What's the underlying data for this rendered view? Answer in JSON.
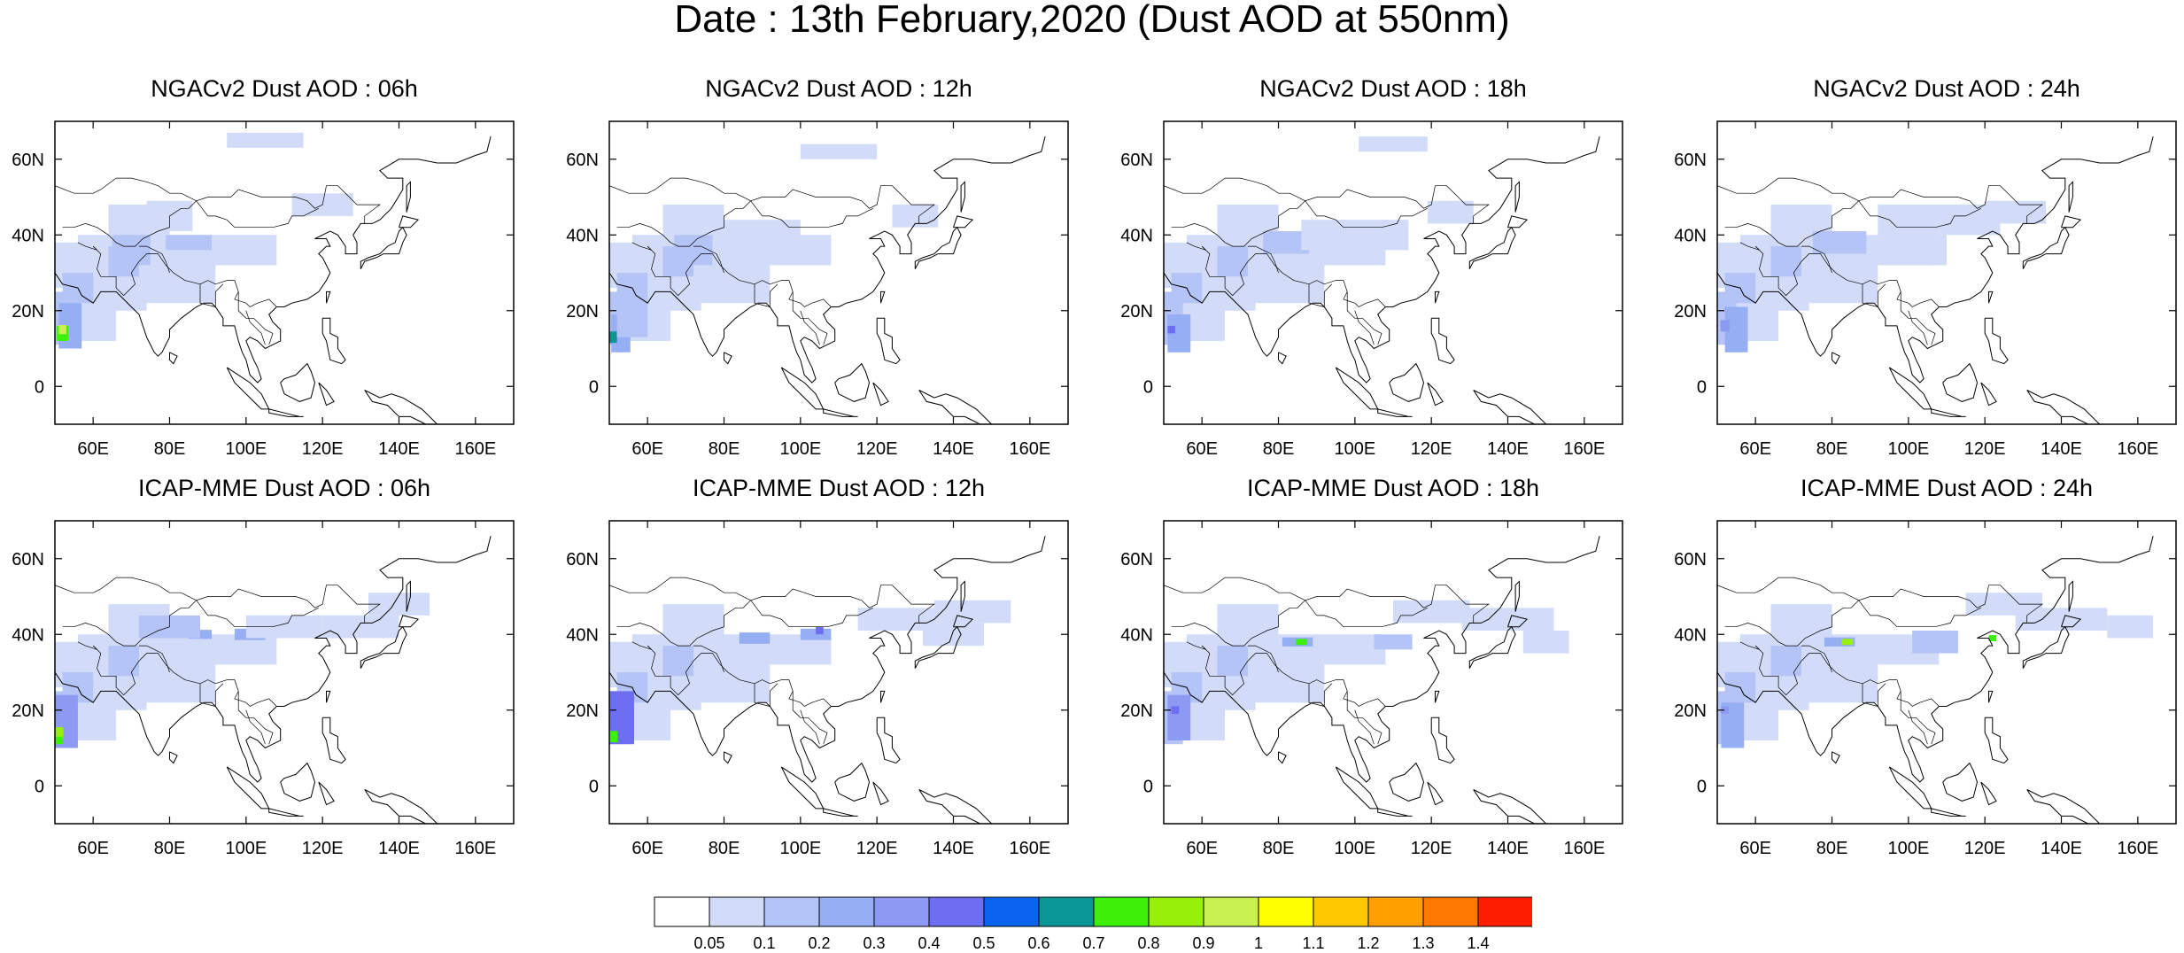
{
  "title": "Date : 13th February,2020 (Dust AOD at 550nm)",
  "panels": [
    {
      "title": "NGACv2 Dust AOD : 06h",
      "model": "NGACv2",
      "hour": "06h"
    },
    {
      "title": "NGACv2 Dust AOD : 12h",
      "model": "NGACv2",
      "hour": "12h"
    },
    {
      "title": "NGACv2 Dust AOD : 18h",
      "model": "NGACv2",
      "hour": "18h"
    },
    {
      "title": "NGACv2 Dust AOD : 24h",
      "model": "NGACv2",
      "hour": "24h"
    },
    {
      "title": "ICAP-MME Dust AOD : 06h",
      "model": "ICAP-MME",
      "hour": "06h"
    },
    {
      "title": "ICAP-MME Dust AOD : 12h",
      "model": "ICAP-MME",
      "hour": "12h"
    },
    {
      "title": "ICAP-MME Dust AOD : 18h",
      "model": "ICAP-MME",
      "hour": "18h"
    },
    {
      "title": "ICAP-MME Dust AOD : 24h",
      "model": "ICAP-MME",
      "hour": "24h"
    }
  ],
  "map": {
    "lon_range": [
      50,
      170
    ],
    "lat_range": [
      -10,
      70
    ],
    "lon_ticks": [
      60,
      80,
      100,
      120,
      140,
      160
    ],
    "lon_tick_labels": [
      "60E",
      "80E",
      "100E",
      "120E",
      "140E",
      "160E"
    ],
    "lat_ticks": [
      0,
      20,
      40,
      60
    ],
    "lat_tick_labels": [
      "0",
      "20N",
      "40N",
      "60N"
    ]
  },
  "colorbar": {
    "colors": [
      "#ffffff",
      "#d2dcf8",
      "#b4c4f6",
      "#96aef4",
      "#8c9af4",
      "#6e6ef2",
      "#0a64f0",
      "#0a9696",
      "#3cf00a",
      "#96f00a",
      "#c8f050",
      "#ffff00",
      "#ffc800",
      "#ffa000",
      "#ff7800",
      "#ff1e00"
    ],
    "labels": [
      "0.05",
      "0.1",
      "0.2",
      "0.3",
      "0.4",
      "0.5",
      "0.6",
      "0.7",
      "0.8",
      "0.9",
      "1",
      "1.1",
      "1.2",
      "1.3",
      "1.4"
    ]
  }
}
